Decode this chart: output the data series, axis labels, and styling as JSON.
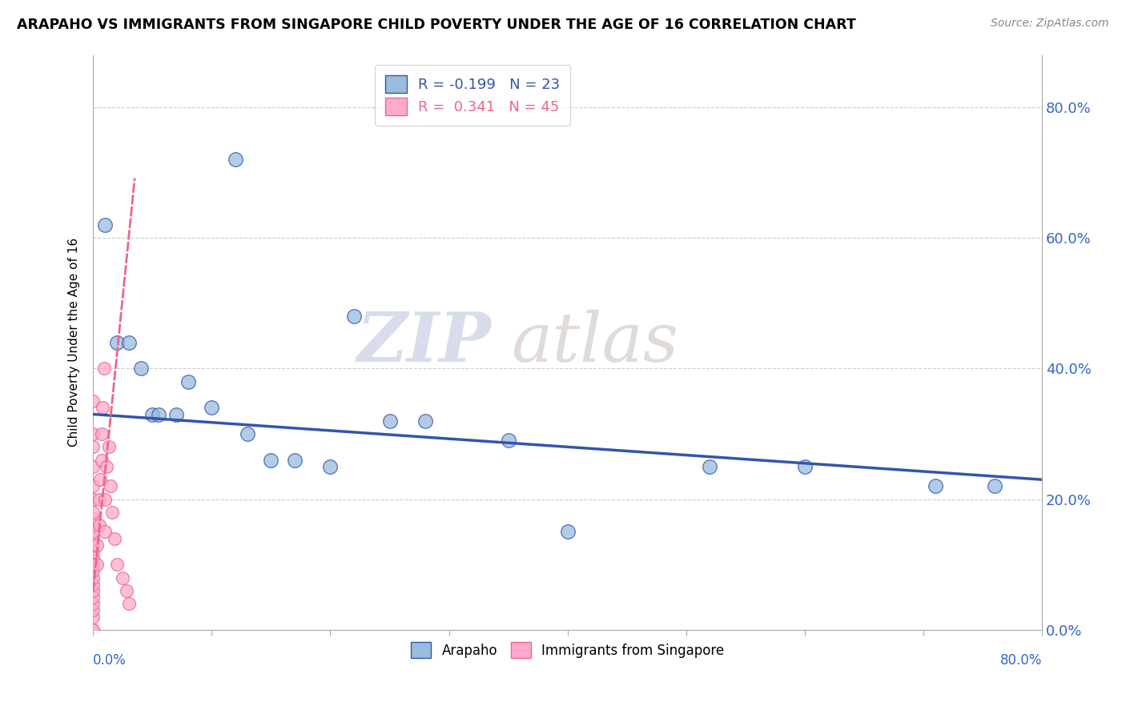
{
  "title": "ARAPAHO VS IMMIGRANTS FROM SINGAPORE CHILD POVERTY UNDER THE AGE OF 16 CORRELATION CHART",
  "source": "Source: ZipAtlas.com",
  "ylabel": "Child Poverty Under the Age of 16",
  "ytick_values": [
    0.0,
    0.2,
    0.4,
    0.6,
    0.8
  ],
  "xmin": 0.0,
  "xmax": 0.8,
  "ymin": 0.0,
  "ymax": 0.88,
  "blue_color": "#99BBDD",
  "pink_color": "#FFAACC",
  "blue_line_color": "#3355AA",
  "pink_line_color": "#EE6688",
  "watermark_zip": "ZIP",
  "watermark_atlas": "atlas",
  "arapaho_x": [
    0.01,
    0.02,
    0.03,
    0.04,
    0.05,
    0.055,
    0.07,
    0.08,
    0.1,
    0.12,
    0.13,
    0.15,
    0.17,
    0.2,
    0.22,
    0.25,
    0.28,
    0.35,
    0.4,
    0.52,
    0.6,
    0.71,
    0.76
  ],
  "arapaho_y": [
    0.62,
    0.44,
    0.44,
    0.4,
    0.33,
    0.33,
    0.33,
    0.38,
    0.34,
    0.72,
    0.3,
    0.26,
    0.26,
    0.25,
    0.48,
    0.32,
    0.32,
    0.29,
    0.15,
    0.25,
    0.25,
    0.22,
    0.22
  ],
  "singapore_x": [
    0.0,
    0.0,
    0.0,
    0.0,
    0.0,
    0.0,
    0.0,
    0.0,
    0.0,
    0.0,
    0.0,
    0.0,
    0.0,
    0.0,
    0.0,
    0.0,
    0.0,
    0.0,
    0.0,
    0.0,
    0.0,
    0.0,
    0.0,
    0.0,
    0.0,
    0.003,
    0.003,
    0.005,
    0.005,
    0.006,
    0.007,
    0.007,
    0.008,
    0.009,
    0.01,
    0.01,
    0.011,
    0.013,
    0.015,
    0.016,
    0.018,
    0.02,
    0.025,
    0.028,
    0.03
  ],
  "singapore_y": [
    0.0,
    0.0,
    0.02,
    0.03,
    0.04,
    0.05,
    0.06,
    0.07,
    0.08,
    0.09,
    0.1,
    0.11,
    0.12,
    0.13,
    0.14,
    0.15,
    0.16,
    0.17,
    0.18,
    0.2,
    0.22,
    0.25,
    0.28,
    0.3,
    0.35,
    0.1,
    0.13,
    0.16,
    0.2,
    0.23,
    0.26,
    0.3,
    0.34,
    0.4,
    0.15,
    0.2,
    0.25,
    0.28,
    0.22,
    0.18,
    0.14,
    0.1,
    0.08,
    0.06,
    0.04
  ],
  "blue_trend_x": [
    0.0,
    0.8
  ],
  "blue_trend_y": [
    0.33,
    0.23
  ],
  "pink_trend_x0": 0.0,
  "pink_trend_x1": 0.035,
  "pink_trend_slope": 18.0,
  "pink_trend_intercept": 0.06
}
